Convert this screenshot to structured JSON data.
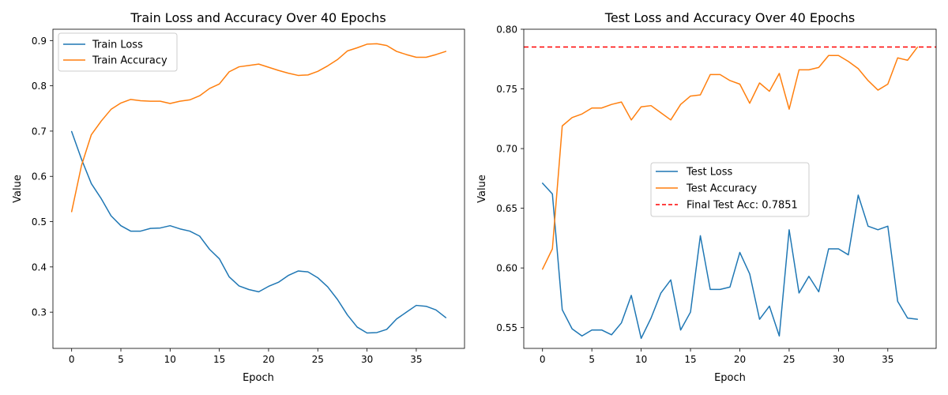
{
  "chart_data": [
    {
      "type": "line",
      "title": "Train Loss and Accuracy Over 40 Epochs",
      "xlabel": "Epoch",
      "ylabel": "Value",
      "xlim": [
        -1.9,
        39.9
      ],
      "ylim": [
        0.22,
        0.925
      ],
      "xticks": [
        0,
        5,
        10,
        15,
        20,
        25,
        30,
        35
      ],
      "yticks": [
        0.3,
        0.4,
        0.5,
        0.6,
        0.7,
        0.8,
        0.9
      ],
      "ytick_labels": [
        "0.3",
        "0.4",
        "0.5",
        "0.6",
        "0.7",
        "0.8",
        "0.9"
      ],
      "legend_position": "upper left",
      "grid": false,
      "x": [
        0,
        1,
        2,
        3,
        4,
        5,
        6,
        7,
        8,
        9,
        10,
        11,
        12,
        13,
        14,
        15,
        16,
        17,
        18,
        19,
        20,
        21,
        22,
        23,
        24,
        25,
        26,
        27,
        28,
        29,
        30,
        31,
        32,
        33,
        34,
        35,
        36,
        37,
        38
      ],
      "series": [
        {
          "name": "Train Loss",
          "color": "#1f77b4",
          "values": [
            0.699,
            0.638,
            0.584,
            0.551,
            0.513,
            0.491,
            0.479,
            0.479,
            0.485,
            0.486,
            0.491,
            0.484,
            0.479,
            0.468,
            0.439,
            0.418,
            0.378,
            0.358,
            0.35,
            0.345,
            0.357,
            0.366,
            0.381,
            0.391,
            0.389,
            0.376,
            0.356,
            0.328,
            0.294,
            0.267,
            0.254,
            0.255,
            0.262,
            0.285,
            0.3,
            0.315,
            0.313,
            0.305,
            0.288
          ]
        },
        {
          "name": "Train Accuracy",
          "color": "#ff7f0e",
          "values": [
            0.522,
            0.624,
            0.692,
            0.722,
            0.748,
            0.762,
            0.77,
            0.767,
            0.766,
            0.766,
            0.761,
            0.766,
            0.769,
            0.778,
            0.794,
            0.804,
            0.831,
            0.842,
            0.845,
            0.848,
            0.841,
            0.834,
            0.828,
            0.823,
            0.824,
            0.832,
            0.844,
            0.858,
            0.877,
            0.884,
            0.892,
            0.893,
            0.889,
            0.876,
            0.869,
            0.863,
            0.863,
            0.869,
            0.876
          ]
        }
      ]
    },
    {
      "type": "line",
      "title": "Test Loss and Accuracy Over 40 Epochs",
      "xlabel": "Epoch",
      "ylabel": "Value",
      "xlim": [
        -1.9,
        39.9
      ],
      "ylim": [
        0.5326,
        0.8
      ],
      "xticks": [
        0,
        5,
        10,
        15,
        20,
        25,
        30,
        35
      ],
      "yticks": [
        0.55,
        0.6,
        0.65,
        0.7,
        0.75,
        0.8
      ],
      "ytick_labels": [
        "0.55",
        "0.60",
        "0.65",
        "0.70",
        "0.75",
        "0.80"
      ],
      "legend_position": "center",
      "grid": false,
      "x": [
        0,
        1,
        2,
        3,
        4,
        5,
        6,
        7,
        8,
        9,
        10,
        11,
        12,
        13,
        14,
        15,
        16,
        17,
        18,
        19,
        20,
        21,
        22,
        23,
        24,
        25,
        26,
        27,
        28,
        29,
        30,
        31,
        32,
        33,
        34,
        35,
        36,
        37,
        38
      ],
      "series": [
        {
          "name": "Test Loss",
          "color": "#1f77b4",
          "values": [
            0.671,
            0.662,
            0.565,
            0.549,
            0.543,
            0.548,
            0.548,
            0.544,
            0.554,
            0.577,
            0.541,
            0.558,
            0.579,
            0.59,
            0.548,
            0.563,
            0.627,
            0.582,
            0.582,
            0.584,
            0.613,
            0.595,
            0.557,
            0.568,
            0.543,
            0.632,
            0.579,
            0.593,
            0.58,
            0.616,
            0.616,
            0.611,
            0.661,
            0.635,
            0.632,
            0.635,
            0.572,
            0.558,
            0.557
          ]
        },
        {
          "name": "Test Accuracy",
          "color": "#ff7f0e",
          "values": [
            0.599,
            0.616,
            0.719,
            0.726,
            0.729,
            0.734,
            0.734,
            0.737,
            0.739,
            0.724,
            0.735,
            0.736,
            0.73,
            0.724,
            0.737,
            0.744,
            0.745,
            0.762,
            0.762,
            0.757,
            0.754,
            0.738,
            0.755,
            0.748,
            0.763,
            0.733,
            0.766,
            0.766,
            0.768,
            0.778,
            0.778,
            0.773,
            0.767,
            0.757,
            0.749,
            0.754,
            0.776,
            0.774,
            0.785
          ]
        }
      ],
      "reference_line": {
        "name": "Final Test Acc: 0.7851",
        "value": 0.7851,
        "color": "#ff0000",
        "style": "dashed"
      }
    }
  ]
}
